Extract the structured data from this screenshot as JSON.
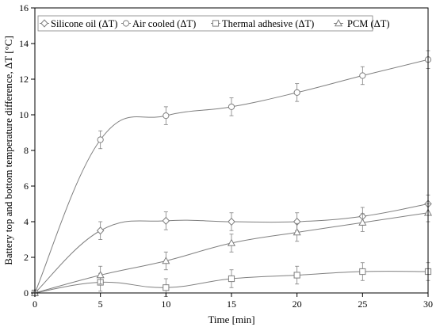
{
  "chart_data": {
    "type": "line",
    "xlabel": "Time [min]",
    "ylabel": "Battery top and bottom temperature difference, ΔT [°C]",
    "x": [
      0,
      5,
      10,
      15,
      20,
      25,
      30
    ],
    "xlim": [
      0,
      30
    ],
    "ylim": [
      0,
      16
    ],
    "xticks": [
      0,
      5,
      10,
      15,
      20,
      25,
      30
    ],
    "yticks": [
      0,
      2,
      4,
      6,
      8,
      10,
      12,
      14,
      16
    ],
    "grid": false,
    "legend_position": "top-left",
    "colors": {
      "line": "#7f7f7f",
      "axis": "#000000"
    },
    "series": [
      {
        "name": "Silicone oil (ΔT)",
        "marker": "diamond",
        "values": [
          0,
          3.5,
          4.05,
          4.0,
          4.0,
          4.3,
          5.0
        ],
        "errors": [
          0,
          0.5,
          0.5,
          0.5,
          0.5,
          0.5,
          0.5
        ]
      },
      {
        "name": "Air cooled (ΔT)",
        "marker": "circle",
        "values": [
          0,
          8.6,
          9.95,
          10.45,
          11.25,
          12.2,
          13.1
        ],
        "errors": [
          0,
          0.5,
          0.5,
          0.5,
          0.5,
          0.5,
          0.5
        ]
      },
      {
        "name": "Thermal adhesive (ΔT)",
        "marker": "square",
        "values": [
          0,
          0.6,
          0.3,
          0.8,
          1.0,
          1.2,
          1.2
        ],
        "errors": [
          0,
          0.5,
          0.5,
          0.5,
          0.5,
          0.5,
          0.5
        ]
      },
      {
        "name": "PCM (ΔT)",
        "marker": "triangle",
        "values": [
          0,
          1.0,
          1.8,
          2.8,
          3.4,
          3.95,
          4.5
        ],
        "errors": [
          0,
          0.5,
          0.5,
          0.5,
          0.5,
          0.5,
          0.5
        ]
      }
    ]
  }
}
